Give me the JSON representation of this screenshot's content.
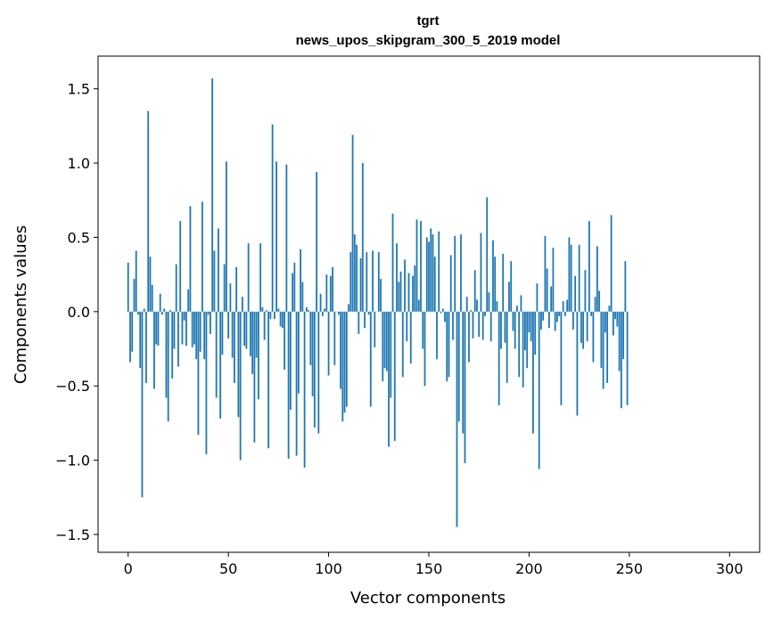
{
  "chart_data": {
    "type": "bar",
    "title": "tgrt",
    "subtitle": "news_upos_skipgram_300_5_2019 model",
    "xlabel": "Vector components",
    "ylabel": "Components values",
    "xlim": [
      -15,
      315
    ],
    "ylim": [
      -1.62,
      1.72
    ],
    "xticks": [
      0,
      50,
      100,
      150,
      200,
      250,
      300
    ],
    "xtick_labels": [
      "0",
      "50",
      "100",
      "150",
      "200",
      "250",
      "300"
    ],
    "yticks": [
      -1.5,
      -1.0,
      -0.5,
      0.0,
      0.5,
      1.0,
      1.5
    ],
    "ytick_labels": [
      "−1.5",
      "−1.0",
      "−0.5",
      "0.0",
      "0.5",
      "1.0",
      "1.5"
    ],
    "bar_color": "#1f77b4",
    "grid": false,
    "values": [
      0.33,
      -0.34,
      -0.27,
      0.22,
      0.41,
      -0.02,
      -0.38,
      -1.25,
      0.02,
      -0.48,
      1.35,
      0.37,
      0.18,
      -0.52,
      -0.22,
      -0.23,
      0.12,
      -0.02,
      0.02,
      -0.58,
      -0.74,
      0.01,
      -0.45,
      -0.25,
      0.32,
      -0.37,
      0.61,
      -0.22,
      -0.06,
      -0.23,
      0.15,
      0.71,
      -0.24,
      -0.22,
      -0.32,
      -0.83,
      -0.27,
      0.74,
      -0.32,
      -0.96,
      -0.02,
      -0.15,
      1.57,
      0.41,
      -0.58,
      0.56,
      -0.72,
      -0.29,
      0.32,
      1.01,
      -0.18,
      0.19,
      -0.31,
      -0.48,
      0.3,
      -0.71,
      -1.0,
      0.1,
      -0.23,
      -0.25,
      0.46,
      -0.3,
      -0.42,
      -0.88,
      -0.31,
      -0.59,
      0.46,
      0.03,
      -0.19,
      0.01,
      -0.92,
      -0.05,
      1.26,
      -0.05,
      1.01,
      0.02,
      -0.1,
      -0.11,
      -0.39,
      0.99,
      -0.99,
      -0.66,
      0.26,
      0.33,
      -0.97,
      -0.55,
      0.42,
      0.2,
      -1.05,
      0.03,
      0.01,
      -0.36,
      -0.57,
      -0.78,
      0.94,
      -0.82,
      0.12,
      -0.03,
      0.02,
      0.25,
      -0.43,
      0.24,
      0.3,
      -0.36,
      0.0,
      -0.02,
      -0.52,
      -0.74,
      -0.68,
      -0.64,
      0.05,
      0.4,
      1.19,
      0.52,
      0.45,
      -0.15,
      0.36,
      1.0,
      -0.11,
      0.4,
      -0.02,
      -0.64,
      0.41,
      -0.24,
      0.0,
      0.4,
      0.22,
      -0.47,
      -0.38,
      -0.4,
      -0.91,
      -0.58,
      0.66,
      -0.87,
      0.46,
      0.2,
      0.27,
      -0.44,
      0.35,
      -0.2,
      0.26,
      -0.35,
      0.24,
      0.31,
      0.62,
      0.08,
      0.61,
      -0.25,
      -0.5,
      0.5,
      0.47,
      0.56,
      0.52,
      0.37,
      -0.32,
      0.54,
      -0.01,
      0.02,
      -0.07,
      -0.47,
      -0.44,
      0.38,
      -0.19,
      0.51,
      -1.45,
      -0.74,
      0.52,
      -0.82,
      -1.02,
      0.1,
      -0.34,
      0.01,
      -0.18,
      0.28,
      0.08,
      -0.17,
      0.53,
      -0.19,
      -0.03,
      0.77,
      0.13,
      -0.2,
      0.48,
      0.37,
      0.07,
      -0.63,
      -0.25,
      0.39,
      -0.21,
      -0.48,
      0.2,
      0.34,
      -0.13,
      -0.25,
      0.04,
      -0.44,
      0.11,
      -0.51,
      -0.26,
      -0.38,
      -0.14,
      -0.2,
      -0.82,
      -0.29,
      0.19,
      -1.06,
      -0.12,
      -0.06,
      0.51,
      0.29,
      -0.11,
      0.17,
      0.43,
      -0.13,
      -0.07,
      -0.03,
      -0.63,
      0.07,
      -0.03,
      0.08,
      0.5,
      0.45,
      -0.12,
      0.24,
      -0.7,
      0.45,
      -0.21,
      -0.25,
      0.28,
      -0.2,
      0.61,
      -0.03,
      -0.34,
      0.1,
      0.44,
      0.14,
      -0.38,
      -0.52,
      -0.14,
      -0.48,
      0.04,
      0.65,
      -0.16,
      -0.05,
      -0.1,
      -0.4,
      -0.65,
      -0.32,
      0.34,
      -0.63
    ]
  }
}
